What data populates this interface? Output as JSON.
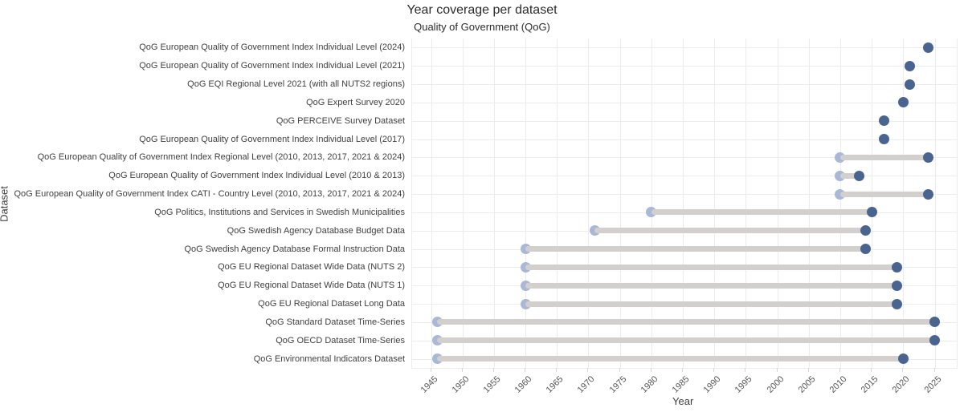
{
  "chart_data": {
    "type": "scatter",
    "subtype": "dumbbell-range",
    "title": "Year coverage per dataset",
    "subtitle": "Quality of Government (QoG)",
    "xlabel": "Year",
    "ylabel": "Dataset",
    "xlim": [
      1942,
      2028.5
    ],
    "xticks": [
      1945,
      1950,
      1955,
      1960,
      1965,
      1970,
      1975,
      1980,
      1985,
      1990,
      1995,
      2000,
      2005,
      2010,
      2015,
      2020,
      2025
    ],
    "grid": true,
    "legend": "none",
    "colors": {
      "end_dot": "#4a6490",
      "start_dot": "#a9b8d6",
      "range_bar": "#d2cfcc",
      "gridline": "#ececec",
      "tick_text": "#555555",
      "label_text": "#3f3f3f"
    },
    "datasets": [
      {
        "label": "QoG European Quality of Government Index Individual Level (2024)",
        "start": 2024,
        "end": 2024
      },
      {
        "label": "QoG European Quality of Government Index Individual Level (2021)",
        "start": 2021,
        "end": 2021
      },
      {
        "label": "QoG EQI Regional Level 2021 (with all NUTS2 regions)",
        "start": 2021,
        "end": 2021
      },
      {
        "label": "QoG Expert Survey 2020",
        "start": 2020,
        "end": 2020
      },
      {
        "label": "QoG PERCEIVE Survey Dataset",
        "start": 2017,
        "end": 2017
      },
      {
        "label": "QoG European Quality of Government Index Individual Level (2017)",
        "start": 2017,
        "end": 2017
      },
      {
        "label": "QoG European Quality of Government Index Regional Level (2010, 2013, 2017, 2021 & 2024)",
        "start": 2010,
        "end": 2024
      },
      {
        "label": "QoG European Quality of Government Index Individual Level (2010 & 2013)",
        "start": 2010,
        "end": 2013
      },
      {
        "label": "QoG European Quality of Government Index CATI - Country Level (2010, 2013, 2017, 2021 & 2024)",
        "start": 2010,
        "end": 2024
      },
      {
        "label": "QoG Politics, Institutions and Services in Swedish Municipalities",
        "start": 1980,
        "end": 2015
      },
      {
        "label": "QoG Swedish Agency Database Budget Data",
        "start": 1971,
        "end": 2014
      },
      {
        "label": "QoG Swedish Agency Database Formal Instruction Data",
        "start": 1960,
        "end": 2014
      },
      {
        "label": "QoG EU Regional Dataset Wide Data (NUTS 2)",
        "start": 1960,
        "end": 2019
      },
      {
        "label": "QoG EU Regional Dataset Wide Data (NUTS 1)",
        "start": 1960,
        "end": 2019
      },
      {
        "label": "QoG EU Regional Dataset Long Data",
        "start": 1960,
        "end": 2019
      },
      {
        "label": "QoG Standard Dataset Time-Series",
        "start": 1946,
        "end": 2025
      },
      {
        "label": "QoG OECD Dataset Time-Series",
        "start": 1946,
        "end": 2025
      },
      {
        "label": "QoG Environmental Indicators Dataset",
        "start": 1946,
        "end": 2020
      }
    ]
  }
}
